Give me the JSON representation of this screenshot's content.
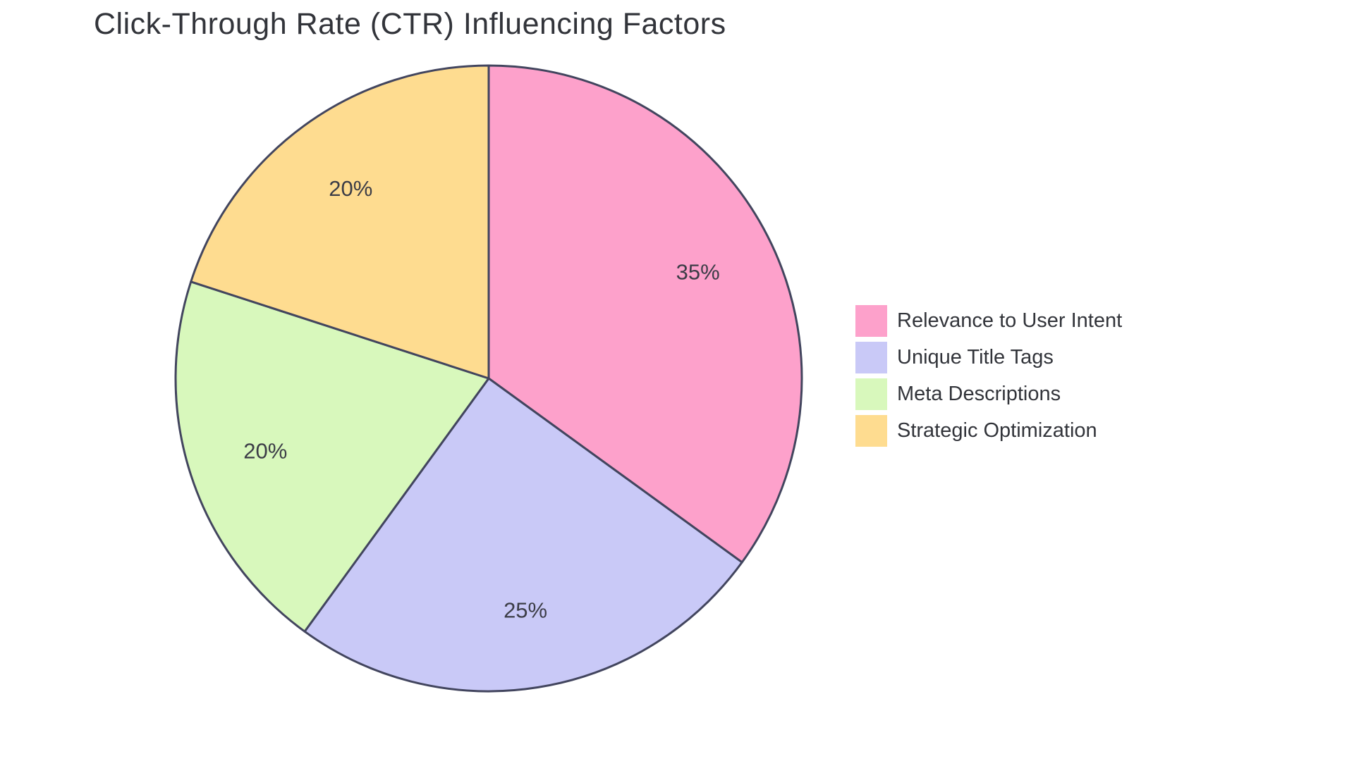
{
  "page": {
    "background_color": "#FFFFFF"
  },
  "chart_data": {
    "type": "pie",
    "title": "Click-Through Rate (CTR) Influencing Factors",
    "legend_position": "right",
    "start_angle_deg": 0,
    "direction": "clockwise",
    "slices": [
      {
        "label": "Relevance to User Intent",
        "value": 35,
        "pct_label": "35%",
        "color": "#FDA1CB"
      },
      {
        "label": "Unique Title Tags",
        "value": 25,
        "pct_label": "25%",
        "color": "#C9C9F7"
      },
      {
        "label": "Meta Descriptions",
        "value": 20,
        "pct_label": "20%",
        "color": "#D8F8BC"
      },
      {
        "label": "Strategic Optimization",
        "value": 20,
        "pct_label": "20%",
        "color": "#FEDC90"
      }
    ],
    "stroke_color": "#42455E",
    "stroke_width": 3,
    "label_color": "#3C3D47",
    "label_radius_ratio": 0.75,
    "title_color": "#32343A"
  }
}
